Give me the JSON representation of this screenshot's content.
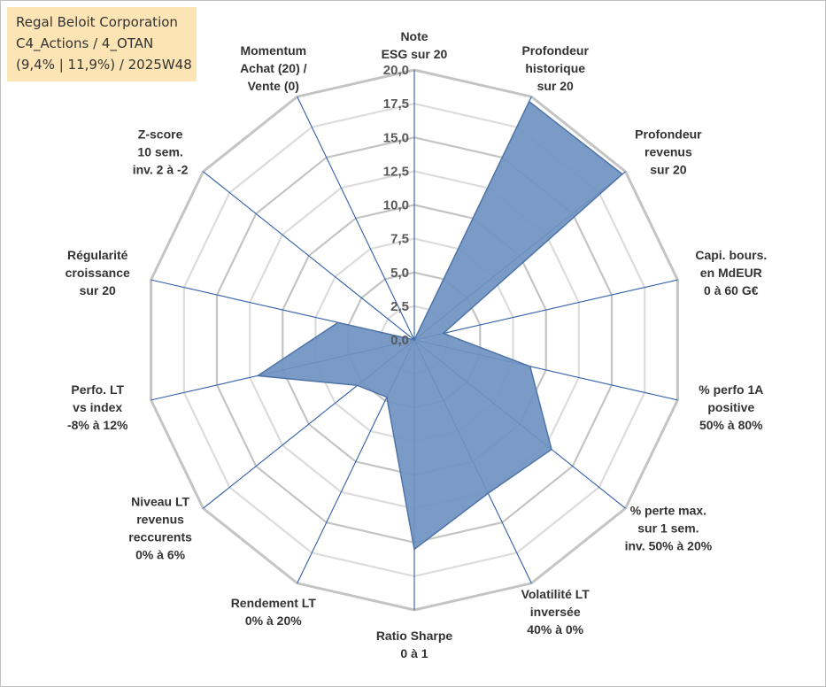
{
  "header": {
    "company": "Regal Beloit Corporation",
    "line2": "C4_Actions / 4_OTAN",
    "line3": "(9,4% | 11,9%) / 2025W48"
  },
  "chart_data": {
    "type": "radar",
    "rmin": 0,
    "rmax": 20,
    "tick_step": 2.5,
    "tick_labels": [
      "0,0",
      "2,5",
      "5,0",
      "7,5",
      "10,0",
      "12,5",
      "15,0",
      "17,5",
      "20,0"
    ],
    "axes": [
      {
        "label": [
          "Note",
          "ESG sur 20"
        ]
      },
      {
        "label": [
          "Profondeur",
          "historique",
          "sur 20"
        ]
      },
      {
        "label": [
          "Profondeur",
          "revenus",
          "sur 20"
        ]
      },
      {
        "label": [
          "Capi. bours.",
          "en MdEUR",
          "0 à 60 G€"
        ]
      },
      {
        "label": [
          "% perfo 1A",
          "positive",
          "50% à 80%"
        ]
      },
      {
        "label": [
          "% perte max.",
          "sur 1 sem.",
          "inv. 50% à 20%"
        ]
      },
      {
        "label": [
          "Volatilité LT",
          "inversée",
          "40% à 0%"
        ]
      },
      {
        "label": [
          "Ratio Sharpe",
          "0 à 1"
        ]
      },
      {
        "label": [
          "Rendement LT",
          "0% à 20%"
        ]
      },
      {
        "label": [
          "Niveau LT",
          "revenus",
          "reccurents",
          "0% à 6%"
        ]
      },
      {
        "label": [
          "Perfo. LT",
          "vs index",
          "-8% à 12%"
        ]
      },
      {
        "label": [
          "Régularité",
          "croissance",
          "sur 20"
        ]
      },
      {
        "label": [
          "Z-score",
          "10 sem.",
          "inv. 2 à -2"
        ]
      },
      {
        "label": [
          "Momentum",
          "Achat (20) /",
          "Vente (0)"
        ]
      }
    ],
    "values": [
      0,
      19.6,
      19.7,
      2.2,
      8.8,
      13.0,
      12.6,
      15.5,
      4.7,
      5.4,
      11.9,
      5.8,
      0,
      0
    ],
    "grid": true,
    "legend": "none",
    "colors": {
      "fill": "#6f93c1",
      "stroke": "#4f74a8",
      "spoke": "#2f5ea8",
      "ring": "#c4c4c4",
      "ring_inner": "#dcdcdc"
    }
  }
}
